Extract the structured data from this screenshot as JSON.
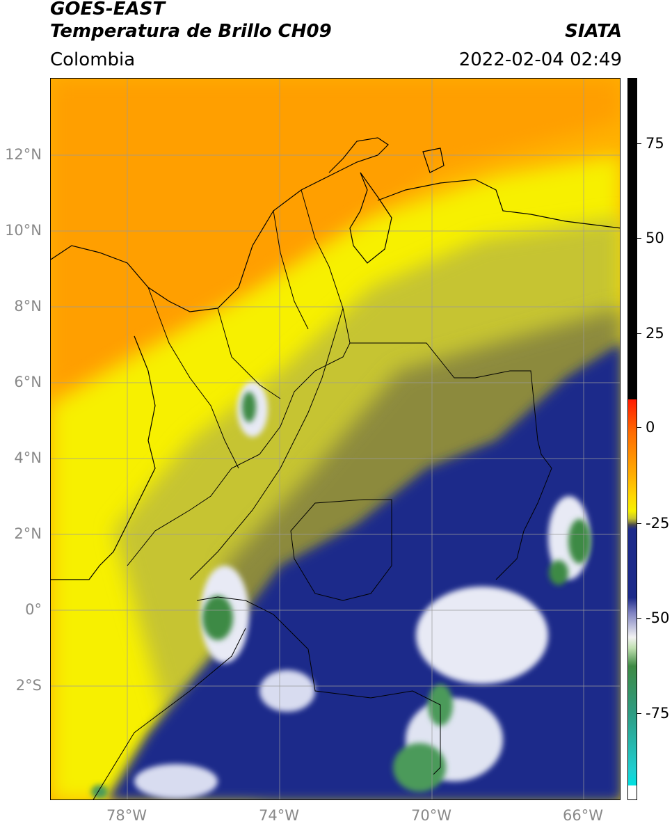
{
  "header": {
    "title_line1": "GOES-EAST",
    "title_line2": "Temperatura de Brillo CH09",
    "brand": "SIATA",
    "region": "Colombia",
    "datetime": "2022-02-04 02:49"
  },
  "map": {
    "lat_labels": [
      "12°N",
      "10°N",
      "8°N",
      "6°N",
      "4°N",
      "2°N",
      "0°",
      "2°S"
    ],
    "lon_labels": [
      "78°W",
      "74°W",
      "70°W",
      "66°W"
    ],
    "colors": {
      "warm_orange": "#ff9f00",
      "orange": "#ffb400",
      "yellow": "#f5f000",
      "olive": "#b8b830",
      "dark_olive": "#6e6e3a",
      "navy": "#1c2a8a",
      "white_cloud": "#e8eaf5",
      "green_cold": "#3e8a44",
      "coast": "#000000"
    }
  },
  "colorbar": {
    "ticks": [
      "75",
      "50",
      "25",
      "0",
      "-25",
      "-50",
      "-75"
    ]
  }
}
